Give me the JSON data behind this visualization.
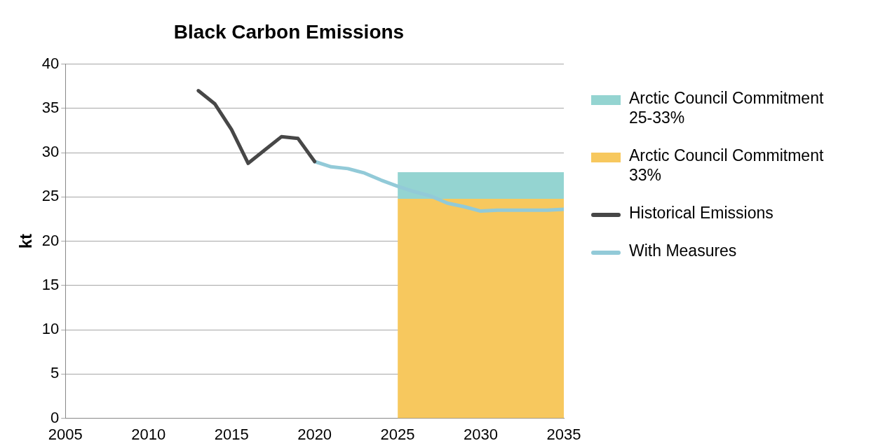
{
  "chart_data": {
    "type": "line",
    "title": "Black Carbon Emissions",
    "ylabel": "kt",
    "xlim": [
      2005,
      2035
    ],
    "xticks": [
      2005,
      2010,
      2015,
      2020,
      2025,
      2030,
      2035
    ],
    "ylim": [
      0,
      40
    ],
    "yticks": [
      0,
      5,
      10,
      15,
      20,
      25,
      30,
      35,
      40
    ],
    "grid": "y",
    "legend": "right",
    "stacked": true,
    "marker": "none",
    "series": [
      {
        "name": "Arctic Council Commitment 33%",
        "type": "area",
        "color": "#f7c85e",
        "x": [
          2025,
          2035
        ],
        "values": [
          24.8,
          24.8
        ]
      },
      {
        "name": "Arctic Council Commitment 25-33%",
        "type": "area",
        "color": "#94d4d1",
        "x": [
          2025,
          2035
        ],
        "values": [
          3.0,
          3.0
        ]
      },
      {
        "name": "Historical Emissions",
        "color": "#474747",
        "x": [
          2013,
          2014,
          2015,
          2016,
          2017,
          2018,
          2019,
          2020
        ],
        "values": [
          37.0,
          35.5,
          32.6,
          28.8,
          30.3,
          31.8,
          31.6,
          29.0
        ]
      },
      {
        "name": "With Measures",
        "color": "#92cad8",
        "x": [
          2020,
          2021,
          2022,
          2023,
          2024,
          2025,
          2026,
          2027,
          2028,
          2029,
          2030,
          2031,
          2032,
          2033,
          2034,
          2035
        ],
        "values": [
          29.0,
          28.4,
          28.2,
          27.7,
          26.9,
          26.2,
          25.6,
          25.1,
          24.3,
          23.9,
          23.4,
          23.5,
          23.5,
          23.5,
          23.5,
          23.6
        ]
      }
    ]
  }
}
